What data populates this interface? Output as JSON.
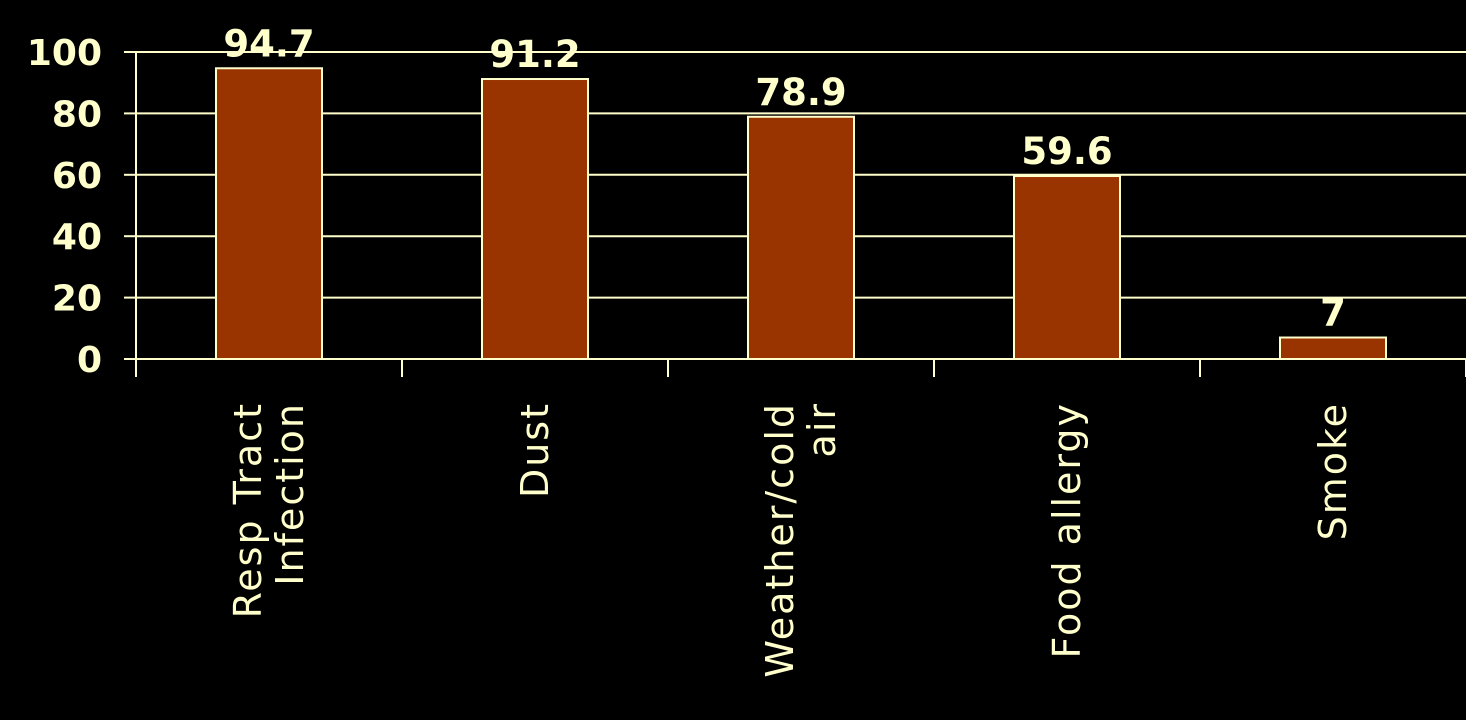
{
  "colors": {
    "background": "#000000",
    "bar_fill": "#993300",
    "bar_stroke": "#FFFFCC",
    "text": "#FFFFCC",
    "grid": "#FFFFCC"
  },
  "chart_data": {
    "type": "bar",
    "categories": [
      [
        "Resp Tract",
        "Infection"
      ],
      [
        "Dust"
      ],
      [
        "Weather/cold",
        "air"
      ],
      [
        "Food allergy"
      ],
      [
        "Smoke"
      ]
    ],
    "values": [
      94.7,
      91.2,
      78.9,
      59.6,
      7
    ],
    "value_labels": [
      "94.7",
      "91.2",
      "78.9",
      "59.6",
      "7"
    ],
    "yticks": [
      "0",
      "20",
      "40",
      "60",
      "80",
      "100"
    ],
    "ylim": [
      0,
      100
    ],
    "grid": true,
    "legend": false,
    "title": "",
    "xlabel": "",
    "ylabel": ""
  }
}
